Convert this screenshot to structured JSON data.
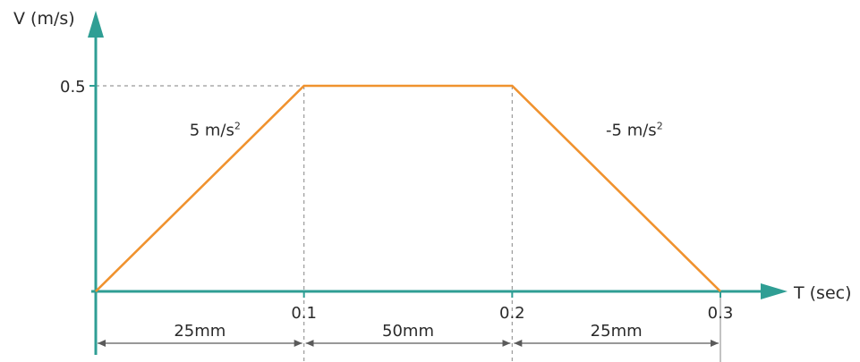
{
  "chart_data": {
    "type": "line",
    "xlabel": "T (sec)",
    "ylabel": "V (m/s)",
    "xlim": [
      0,
      0.3
    ],
    "ylim": [
      0,
      0.5
    ],
    "x_ticks": [
      "0.1",
      "0.2",
      "0.3"
    ],
    "y_ticks": [
      "0.5"
    ],
    "grid": false,
    "series": [
      {
        "x": [
          0,
          0.1,
          0.2,
          0.3
        ],
        "y": [
          0,
          0.5,
          0.5,
          0
        ]
      }
    ],
    "annotations": [
      {
        "text": "5 m/s",
        "sup": "2",
        "x": 0.045,
        "y": 0.39
      },
      {
        "text": "-5 m/s",
        "sup": "2",
        "x": 0.245,
        "y": 0.39
      }
    ],
    "dimensions": [
      {
        "from": 0,
        "to": 0.1,
        "label": "25mm"
      },
      {
        "from": 0.1,
        "to": 0.2,
        "label": "50mm"
      },
      {
        "from": 0.2,
        "to": 0.3,
        "label": "25mm"
      }
    ]
  },
  "colors": {
    "axis": "#2f9e94",
    "line": "#f0922e",
    "guide": "#999999",
    "dim": "#5a5a5a"
  }
}
